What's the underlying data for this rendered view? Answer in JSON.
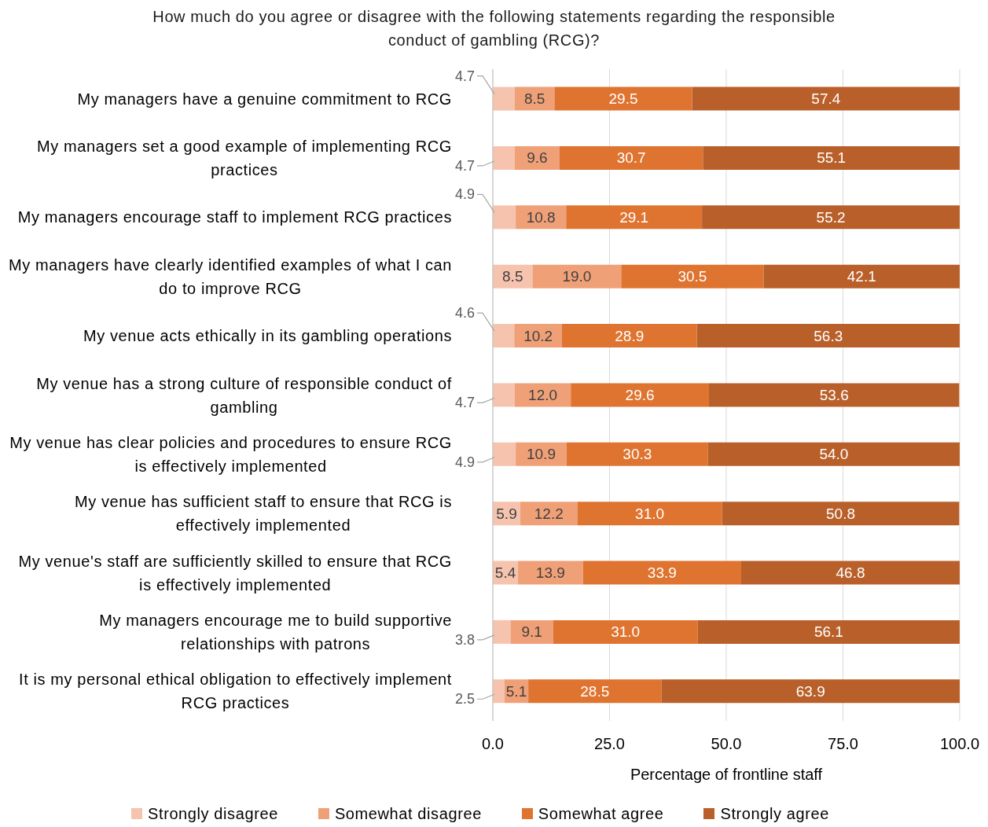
{
  "chart_data": {
    "type": "bar",
    "orientation": "horizontal",
    "stacked": true,
    "title": "How much do you agree or disagree with the following statements regarding the responsible conduct of gambling (RCG)?",
    "xlabel": "Percentage of frontline staff",
    "categories": [
      "My managers have a genuine commitment to RCG",
      "My managers set a good example of implementing RCG practices",
      "My managers encourage staff to implement RCG practices",
      "My managers have clearly identified examples of what I can do to improve RCG",
      "My venue acts ethically in its gambling operations",
      "My venue has a strong culture of responsible conduct of gambling",
      "My venue has clear policies and procedures to ensure RCG is effectively implemented",
      "My venue has sufficient staff to ensure that RCG is effectively implemented",
      "My venue's staff are sufficiently skilled to ensure that RCG is effectively implemented",
      "My managers encourage me to build supportive relationships with patrons",
      "It is my personal ethical obligation to effectively implement RCG practices"
    ],
    "series": [
      {
        "name": "Strongly disagree",
        "color": "#f6c3ae",
        "values": [
          4.7,
          4.7,
          4.9,
          8.5,
          4.6,
          4.7,
          4.9,
          5.9,
          5.4,
          3.8,
          2.5
        ],
        "value_labels": [
          "4.7",
          "4.7",
          "4.9",
          "8.5",
          "4.6",
          "4.7",
          "4.9",
          "5.9",
          "5.4",
          "3.8",
          "2.5"
        ]
      },
      {
        "name": "Somewhat disagree",
        "color": "#f0a077",
        "values": [
          8.5,
          9.6,
          10.8,
          19.0,
          10.2,
          12.0,
          10.9,
          12.2,
          13.9,
          9.1,
          5.1
        ],
        "value_labels": [
          "8.5",
          "9.6",
          "10.8",
          "19.0",
          "10.2",
          "12.0",
          "10.9",
          "12.2",
          "13.9",
          "9.1",
          "5.1"
        ]
      },
      {
        "name": "Somewhat agree",
        "color": "#df7430",
        "values": [
          29.5,
          30.7,
          29.1,
          30.5,
          28.9,
          29.6,
          30.3,
          31.0,
          33.9,
          31.0,
          28.5
        ],
        "value_labels": [
          "29.5",
          "30.7",
          "29.1",
          "30.5",
          "28.9",
          "29.6",
          "30.3",
          "31.0",
          "33.9",
          "31.0",
          "28.5"
        ]
      },
      {
        "name": "Strongly agree",
        "color": "#b9602a",
        "values": [
          57.4,
          55.1,
          55.2,
          42.1,
          56.3,
          53.6,
          54.0,
          50.8,
          46.8,
          56.1,
          63.9
        ],
        "value_labels": [
          "57.4",
          "55.1",
          "55.2",
          "42.1",
          "56.3",
          "53.6",
          "54.0",
          "50.8",
          "46.8",
          "56.1",
          "63.9"
        ]
      }
    ],
    "xlim": [
      0,
      100
    ],
    "xticks": [
      {
        "value": 0,
        "label": "0.0"
      },
      {
        "value": 25,
        "label": "25.0"
      },
      {
        "value": 50,
        "label": "50.0"
      },
      {
        "value": 75,
        "label": "75.0"
      },
      {
        "value": 100,
        "label": "100.0"
      }
    ],
    "grid": "x",
    "legend": "bottom"
  }
}
